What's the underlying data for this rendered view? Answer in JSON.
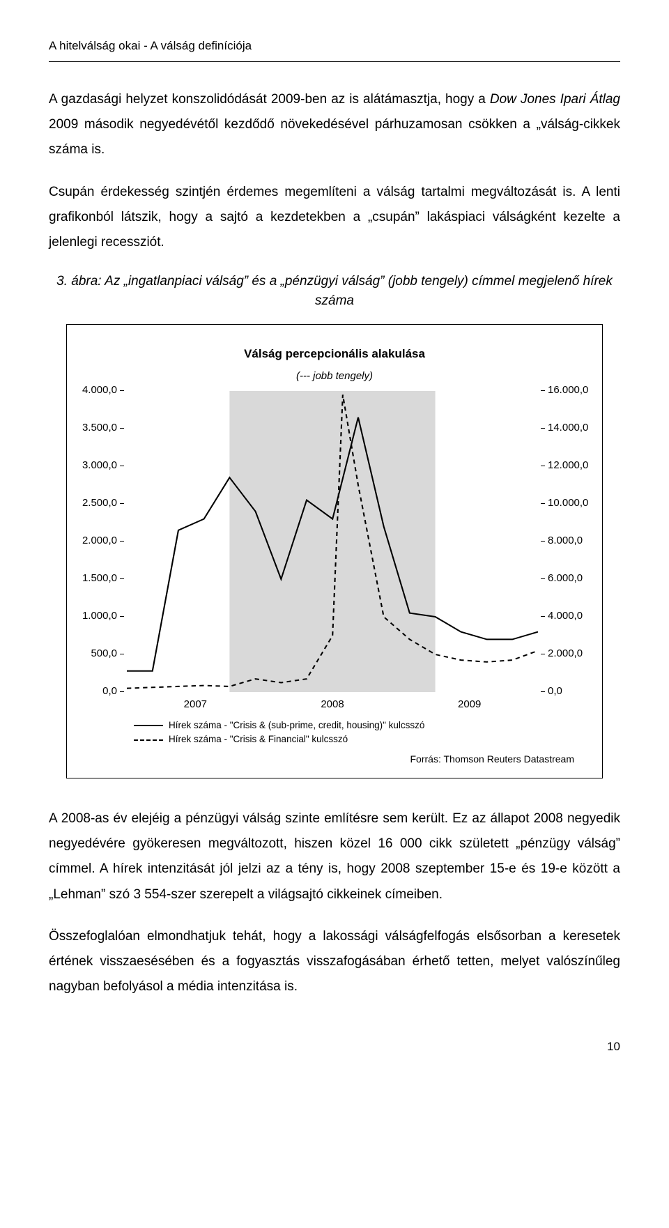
{
  "header": "A hitelválság okai - A válság definíciója",
  "paragraphs": {
    "p1": "A gazdasági helyzet konszolidódását 2009-ben az is alátámasztja, hogy a Dow Jones Ipari Átlag 2009 második negyedévétől kezdődő növekedésével párhuzamosan csökken a „válság-cikkek száma is.",
    "p2": "Csupán érdekesség szintjén érdemes megemlíteni a válság tartalmi megváltozását is. A lenti grafikonból látszik, hogy a sajtó a kezdetekben a „csupán” lakáspiaci válságként kezelte a jelenlegi recessziót.",
    "p3": "A 2008-as év elejéig a pénzügyi válság szinte említésre sem került. Ez az állapot 2008 negyedik negyedévére gyökeresen megváltozott, hiszen közel 16 000 cikk született „pénzügy válság” címmel. A hírek intenzitását jól jelzi az a tény is, hogy 2008 szeptember 15-e és 19-e között a „Lehman” szó 3 554-szer szerepelt a világsajtó cikkeinek címeiben.",
    "p4": "Összefoglalóan elmondhatjuk tehát, hogy a lakossági válságfelfogás elsősorban a keresetek értének visszaesésében és a fogyasztás visszafogásában érhető tetten, melyet valószínűleg nagyban befolyásol a média intenzitása is."
  },
  "figure": {
    "caption": "3. ábra: Az „ingatlanpiaci válság” és a „pénzügyi válság” (jobb tengely) címmel megjelenő hírek száma",
    "chart": {
      "type": "line",
      "title": "Válság percepcionális alakulása",
      "subtitle": "(--- jobb tengely)",
      "xlabels": [
        "2007",
        "2008",
        "2009"
      ],
      "y_left": {
        "min": 0,
        "max": 4000,
        "step": 500,
        "labels": [
          "4.000,0",
          "3.500,0",
          "3.000,0",
          "2.500,0",
          "2.000,0",
          "1.500,0",
          "1.000,0",
          "500,0",
          "0,0"
        ]
      },
      "y_right": {
        "min": 0,
        "max": 16000,
        "step": 2000,
        "labels": [
          "16.000,0",
          "14.000,0",
          "12.000,0",
          "10.000,0",
          "8.000,0",
          "6.000,0",
          "4.000,0",
          "2.000,0",
          "0,0"
        ]
      },
      "shade_2008": {
        "color": "#d9d9d9"
      },
      "series_solid": {
        "name": "Hírek száma - \"Crisis & (sub-prime, credit, housing)\" kulcsszó",
        "color": "#000000",
        "width": 2,
        "dash": "none",
        "points": [
          [
            0.0,
            280
          ],
          [
            0.083,
            280
          ],
          [
            0.167,
            2150
          ],
          [
            0.25,
            2300
          ],
          [
            0.333,
            2850
          ],
          [
            0.417,
            2400
          ],
          [
            0.5,
            1500
          ],
          [
            0.583,
            2550
          ],
          [
            0.667,
            2300
          ],
          [
            0.75,
            3650
          ],
          [
            0.833,
            2200
          ],
          [
            0.917,
            1050
          ],
          [
            1.0,
            1000
          ],
          [
            1.083,
            800
          ],
          [
            1.167,
            700
          ],
          [
            1.25,
            700
          ],
          [
            1.333,
            800
          ]
        ]
      },
      "series_dashed": {
        "name": "Hírek száma - \"Crisis & Financial\" kulcsszó",
        "color": "#000000",
        "width": 2,
        "dash": "6,5",
        "points": [
          [
            0.0,
            200
          ],
          [
            0.083,
            250
          ],
          [
            0.167,
            300
          ],
          [
            0.25,
            350
          ],
          [
            0.333,
            300
          ],
          [
            0.417,
            700
          ],
          [
            0.5,
            500
          ],
          [
            0.583,
            700
          ],
          [
            0.667,
            3000
          ],
          [
            0.7,
            15800
          ],
          [
            0.75,
            11000
          ],
          [
            0.833,
            4000
          ],
          [
            0.917,
            2800
          ],
          [
            1.0,
            2000
          ],
          [
            1.083,
            1700
          ],
          [
            1.167,
            1600
          ],
          [
            1.25,
            1700
          ],
          [
            1.333,
            2200
          ]
        ]
      },
      "legend": {
        "solid": "Hírek száma - \"Crisis & (sub-prime, credit, housing)\" kulcsszó",
        "dashed": "Hírek száma - \"Crisis & Financial\" kulcsszó"
      },
      "source": "Forrás: Thomson Reuters Datastream",
      "background_color": "#ffffff",
      "axis_color": "#000000"
    }
  },
  "page_number": "10"
}
